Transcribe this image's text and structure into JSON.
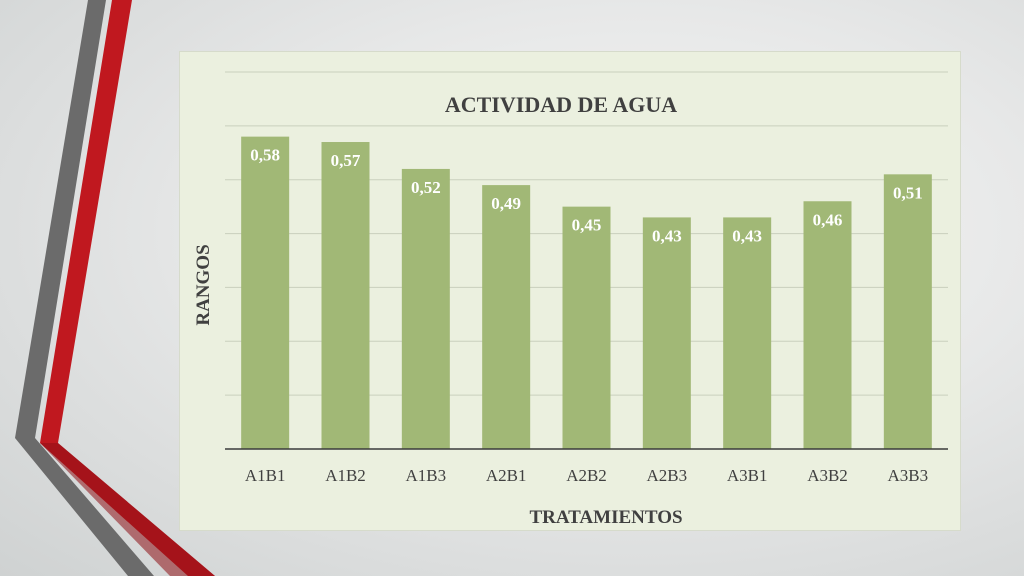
{
  "colors": {
    "bar": "#a1b876",
    "bar_label": "#ffffff",
    "text": "#404040",
    "grid": "#c9cfbd",
    "axis": "#3b3b3b",
    "panel": "#ebf0df",
    "deco_gray": "#6b6b6b",
    "deco_red": "#c0181f"
  },
  "chart_data": {
    "type": "bar",
    "title": "ACTIVIDAD DE AGUA",
    "xlabel": "TRATAMIENTOS",
    "ylabel": "RANGOS",
    "categories": [
      "A1B1",
      "A1B2",
      "A1B3",
      "A2B1",
      "A2B2",
      "A2B3",
      "A3B1",
      "A3B2",
      "A3B3"
    ],
    "values": [
      0.58,
      0.57,
      0.52,
      0.49,
      0.45,
      0.43,
      0.43,
      0.46,
      0.51
    ],
    "value_labels": [
      "0,58",
      "0,57",
      "0,52",
      "0,49",
      "0,45",
      "0,43",
      "0,43",
      "0,46",
      "0,51"
    ],
    "ylim": [
      0,
      0.7
    ],
    "y_tick_step": 0.1,
    "grid": true,
    "y_tick_labels_visible": false,
    "legend": "none"
  }
}
